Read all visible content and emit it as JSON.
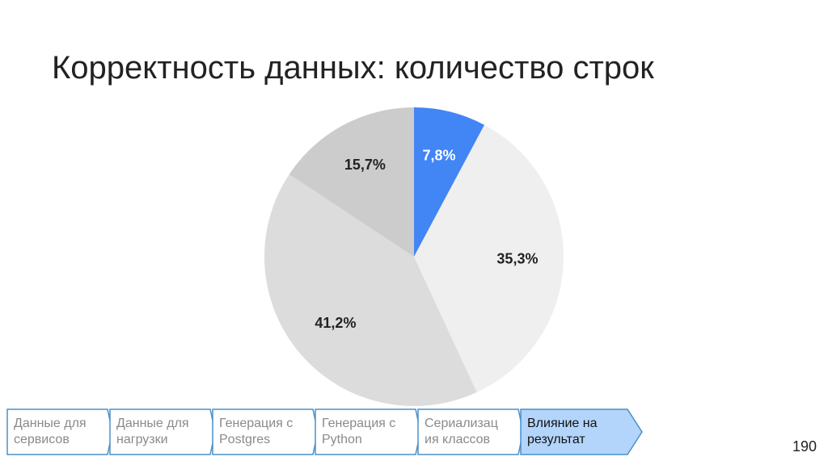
{
  "slide": {
    "title": "Корректность данных: количество строк",
    "page_number": "190"
  },
  "chart_data": {
    "type": "pie",
    "title": "",
    "slices": [
      {
        "label": "7,8%",
        "value": 7.8,
        "color": "#4285f4",
        "label_color": "#ffffff"
      },
      {
        "label": "35,3%",
        "value": 35.3,
        "color": "#efefef",
        "label_color": "#222222"
      },
      {
        "label": "41,2%",
        "value": 41.2,
        "color": "#dcdcdc",
        "label_color": "#222222"
      },
      {
        "label": "15,7%",
        "value": 15.7,
        "color": "#cccccc",
        "label_color": "#222222"
      }
    ],
    "start_angle": "12 o'clock",
    "direction": "clockwise",
    "legend": "none"
  },
  "nav": {
    "steps": [
      {
        "lines": [
          "Данные для",
          "сервисов"
        ],
        "active": false
      },
      {
        "lines": [
          "Данные для",
          "нагрузки"
        ],
        "active": false
      },
      {
        "lines": [
          "Генерация с",
          "Postgres"
        ],
        "active": false
      },
      {
        "lines": [
          "Генерация с",
          "Python"
        ],
        "active": false
      },
      {
        "lines": [
          "Сериализац",
          "ия классов"
        ],
        "active": false
      },
      {
        "lines": [
          "Влияние на",
          "результат"
        ],
        "active": true
      }
    ],
    "border_color": "#4a90c8",
    "active_fill": "#b3d5fb"
  }
}
